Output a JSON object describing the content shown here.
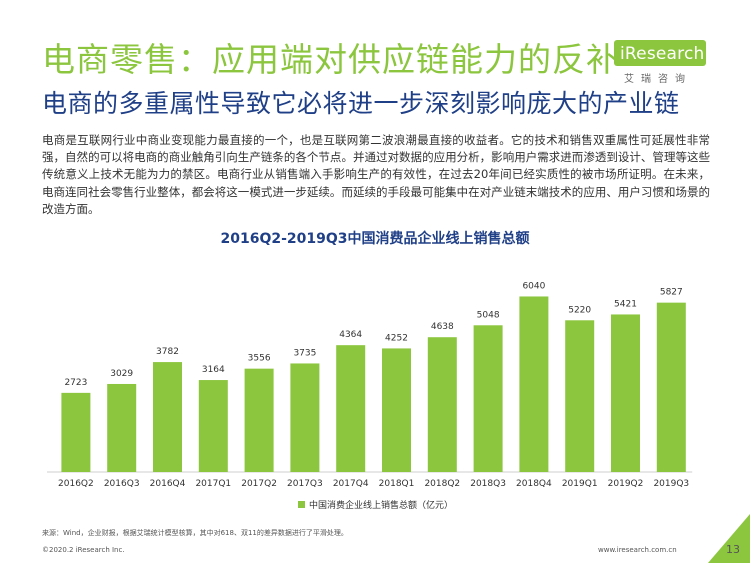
{
  "title": "电商零售：应用端对供应链能力的反补",
  "subtitle": "电商的多重属性导致它必将进一步深刻影响庞大的产业链",
  "logo": {
    "name": "iResearch",
    "sub": "艾瑞咨询"
  },
  "paragraph": "电商是互联网行业中商业变现能力最直接的一个，也是互联网第二波浪潮最直接的收益者。它的技术和销售双重属性可延展性非常强，自然的可以将电商的商业触角引向生产链条的各个节点。并通过对数据的应用分析，影响用户需求进而渗透到设计、管理等这些传统意义上技术无能为力的禁区。电商行业从销售端入手影响生产的有效性，在过去20年间已经实质性的被市场所证明。在未来，电商连同社会零售行业整体，都会将这一模式进一步延续。而延续的手段最可能集中在对产业链末端技术的应用、用户习惯和场景的改造方面。",
  "chart_data": {
    "type": "bar",
    "title": "2016Q2-2019Q3中国消费品企业线上销售总额",
    "categories": [
      "2016Q2",
      "2016Q3",
      "2016Q4",
      "2017Q1",
      "2017Q2",
      "2017Q3",
      "2017Q4",
      "2018Q1",
      "2018Q2",
      "2018Q3",
      "2018Q4",
      "2019Q1",
      "2019Q2",
      "2019Q3"
    ],
    "series": [
      {
        "name": "中国消费企业线上销售总额（亿元）",
        "values": [
          2723,
          3029,
          3782,
          3164,
          3556,
          3735,
          4364,
          4252,
          4638,
          5048,
          6040,
          5220,
          5421,
          5827
        ]
      }
    ],
    "ylim": [
      0,
      6400
    ],
    "legend": "bottom",
    "grid": false,
    "color": "#8cc63f"
  },
  "source": "来源：Wind，企业财报，根据艾瑞统计模型核算，其中对618、双11的差异数据进行了平滑处理。",
  "footer": {
    "copyright": "©2020.2 iResearch Inc.",
    "url": "www.iresearch.com.cn",
    "page": "13"
  },
  "colors": {
    "accent": "#8cc63f",
    "navy": "#1f3f87"
  }
}
